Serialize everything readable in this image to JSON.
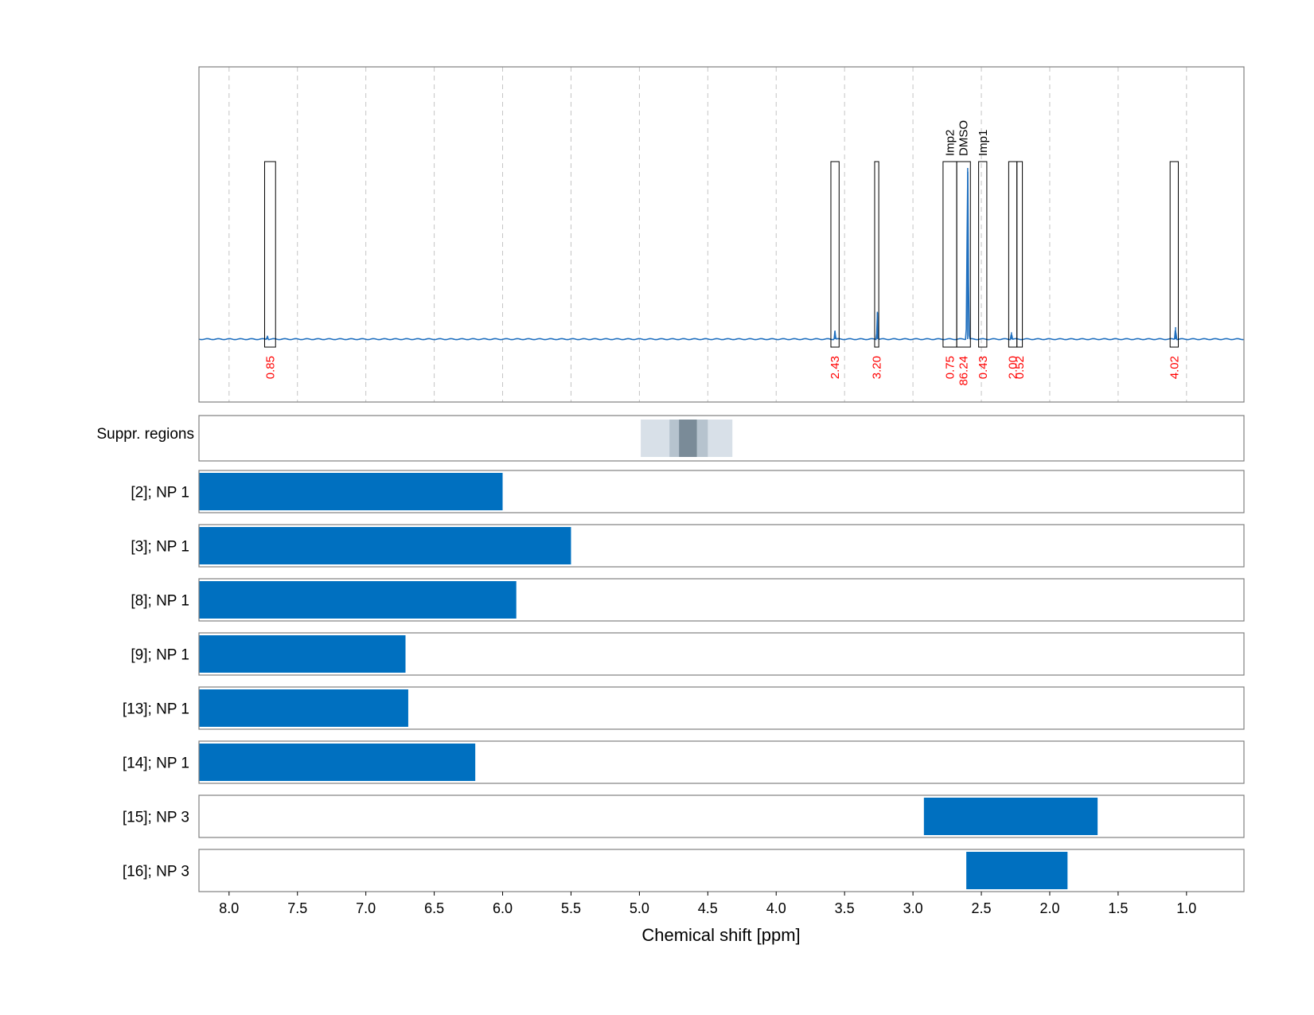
{
  "chart_data": {
    "type": "spectrum",
    "xlabel": "Chemical shift [ppm]",
    "x_reversed": true,
    "xlim": [
      8.22,
      0.58
    ],
    "xticks": [
      "8.0",
      "7.5",
      "7.0",
      "6.5",
      "6.0",
      "5.5",
      "5.0",
      "4.5",
      "4.0",
      "3.5",
      "3.0",
      "2.5",
      "2.0",
      "1.5",
      "1.0"
    ],
    "grid": "vertical dashed",
    "colors": {
      "spectrum": "#1f6fbf",
      "bar": "#0070c0",
      "integral_label": "#ff0000",
      "suppr_light": "#d8e0e8",
      "suppr_mid": "#b6c3ce",
      "suppr_dark": "#7a8b98"
    },
    "spectrum": {
      "baseline": 0,
      "peaks": [
        {
          "x": 7.72,
          "h": 0.02
        },
        {
          "x": 3.57,
          "h": 0.05
        },
        {
          "x": 3.26,
          "h": 0.16
        },
        {
          "x": 2.6,
          "h": 1.0
        },
        {
          "x": 2.28,
          "h": 0.04
        },
        {
          "x": 1.08,
          "h": 0.07
        }
      ]
    },
    "integration_regions": [
      {
        "from": 7.74,
        "to": 7.66,
        "value": "0.85",
        "name": ""
      },
      {
        "from": 3.6,
        "to": 3.54,
        "value": "2.43",
        "name": ""
      },
      {
        "from": 3.28,
        "to": 3.25,
        "value": "3.20",
        "name": ""
      },
      {
        "from": 2.78,
        "to": 2.68,
        "value": "0.75",
        "name": "Imp2"
      },
      {
        "from": 2.68,
        "to": 2.58,
        "value": "86.24",
        "name": "DMSO"
      },
      {
        "from": 2.52,
        "to": 2.46,
        "value": "0.43",
        "name": "Imp1"
      },
      {
        "from": 2.3,
        "to": 2.24,
        "value": "2.00",
        "name": ""
      },
      {
        "from": 2.24,
        "to": 2.2,
        "value": "0.52",
        "name": ""
      },
      {
        "from": 1.12,
        "to": 1.06,
        "value": "4.02",
        "name": ""
      }
    ],
    "suppressed_regions": [
      {
        "from": 4.99,
        "to": 4.32,
        "level": "light"
      },
      {
        "from": 4.78,
        "to": 4.5,
        "level": "mid"
      },
      {
        "from": 4.71,
        "to": 4.58,
        "level": "dark"
      }
    ],
    "suppr_label": "Suppr. regions",
    "rows": [
      {
        "label": "[2]; NP 1",
        "from": 8.22,
        "to": 6.0
      },
      {
        "label": "[3]; NP 1",
        "from": 8.22,
        "to": 5.5
      },
      {
        "label": "[8]; NP 1",
        "from": 8.22,
        "to": 5.9
      },
      {
        "label": "[9]; NP 1",
        "from": 8.22,
        "to": 6.71
      },
      {
        "label": "[13]; NP 1",
        "from": 8.22,
        "to": 6.69
      },
      {
        "label": "[14]; NP 1",
        "from": 8.22,
        "to": 6.2
      },
      {
        "label": "[15]; NP 3",
        "from": 2.92,
        "to": 1.65
      },
      {
        "label": "[16]; NP 3",
        "from": 2.61,
        "to": 1.87
      }
    ]
  }
}
